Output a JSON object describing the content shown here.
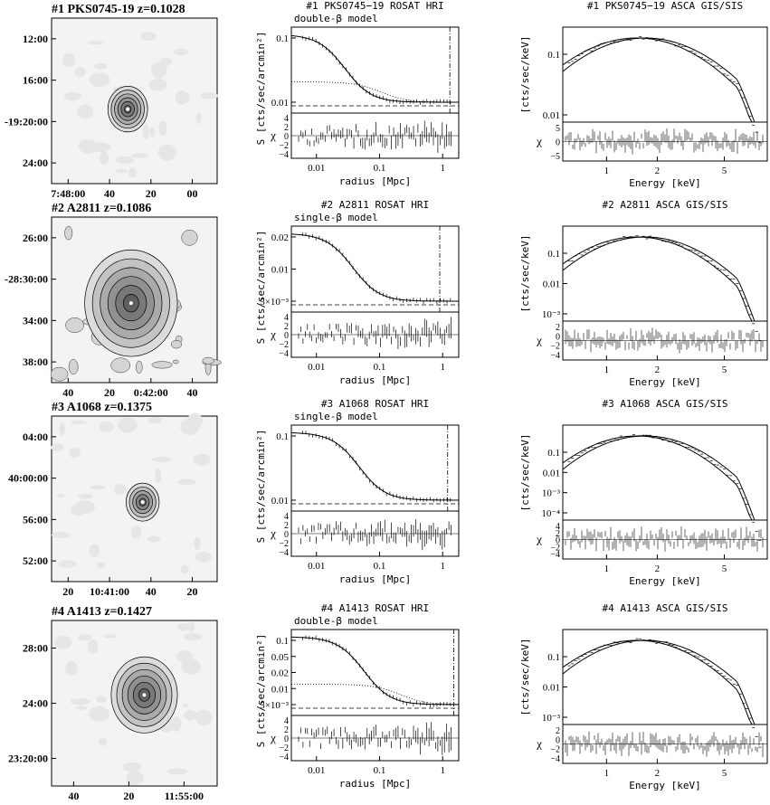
{
  "rows": [
    {
      "image": {
        "title": "#1 PKS0745-19 z=0.1028",
        "yticks": [
          "12:00",
          "16:00",
          "-19:20:00",
          "24:00"
        ],
        "xticks": [
          "7:48:00",
          "40",
          "20",
          "00"
        ],
        "contours": 6,
        "core": [
          0.46,
          0.55
        ],
        "size": 0.12
      },
      "profile": {
        "title": "#1 PKS0745−19 ROSAT HRI",
        "model": "double-β model",
        "yticks": [
          "0.1",
          "0.01"
        ],
        "components": 2,
        "rcut": 1.3
      },
      "spectrum": {
        "title": "#1 PKS0745−19 ASCA GIS/SIS",
        "yticks": [
          "0.1",
          "0.01"
        ],
        "chiticks": [
          "5",
          "0",
          "−5"
        ]
      }
    },
    {
      "image": {
        "title": "#2 A2811 z=0.1086",
        "yticks": [
          "26:00",
          "-28:30:00",
          "34:00",
          "38:00"
        ],
        "xticks": [
          "40",
          "20",
          "0:42:00",
          "40"
        ],
        "contours": 6,
        "core": [
          0.48,
          0.52
        ],
        "size": 0.28
      },
      "profile": {
        "title": "#2 A2811 ROSAT HRI",
        "model": "single-β model",
        "yticks": [
          "0.02",
          "0.01",
          "5×10⁻³"
        ],
        "components": 1,
        "rcut": 0.9
      },
      "spectrum": {
        "title": "#2 A2811 ASCA GIS/SIS",
        "yticks": [
          "0.1",
          "0.01",
          "10⁻³"
        ],
        "chiticks": [
          "2",
          "0",
          "−2",
          "−4"
        ]
      }
    },
    {
      "image": {
        "title": "#3 A1068 z=0.1375",
        "yticks": [
          "04:00",
          "40:00:00",
          "56:00",
          "52:00"
        ],
        "xticks": [
          "20",
          "10:41:00",
          "40",
          "20"
        ],
        "contours": 5,
        "core": [
          0.55,
          0.52
        ],
        "size": 0.1
      },
      "profile": {
        "title": "#3 A1068 ROSAT HRI",
        "model": "single-β model",
        "yticks": [
          "0.1",
          "0.01"
        ],
        "components": 1,
        "rcut": 1.2
      },
      "spectrum": {
        "title": "#3 A1068 ASCA GIS/SIS",
        "yticks": [
          "0.1",
          "0.01",
          "10⁻³",
          "10⁻⁴"
        ],
        "chiticks": [
          "4",
          "2",
          "0",
          "−2",
          "−4"
        ]
      }
    },
    {
      "image": {
        "title": "#4 A1413 z=0.1427",
        "yticks": [
          "28:00",
          "24:00",
          "23:20:00"
        ],
        "xticks": [
          "40",
          "20",
          "11:55:00"
        ],
        "contours": 6,
        "core": [
          0.56,
          0.45
        ],
        "size": 0.2
      },
      "profile": {
        "title": "#4 A1413 ROSAT HRI",
        "model": "double-β model",
        "yticks": [
          "0.1",
          "0.05",
          "0.02",
          "0.01",
          "5×10⁻³"
        ],
        "components": 2,
        "rcut": 1.5
      },
      "spectrum": {
        "title": "#4 A1413 ASCA GIS/SIS",
        "yticks": [
          "0.1",
          "0.01",
          "10⁻³"
        ],
        "chiticks": [
          "2",
          "0",
          "−2",
          "−4"
        ]
      }
    }
  ],
  "labels": {
    "profile_ylabel": "S [cts/sec/arcmin²]",
    "chi": "χ",
    "profile_xlabel": "radius [Mpc]",
    "profile_xticks": [
      "0.01",
      "0.1",
      "1"
    ],
    "profile_chiticks": [
      "4",
      "2",
      "0",
      "−2",
      "−4"
    ],
    "spec_ylabel": "[cts/sec/keV]",
    "spec_xlabel": "Energy [keV]",
    "spec_xticks": [
      "1",
      "2",
      "5"
    ]
  }
}
